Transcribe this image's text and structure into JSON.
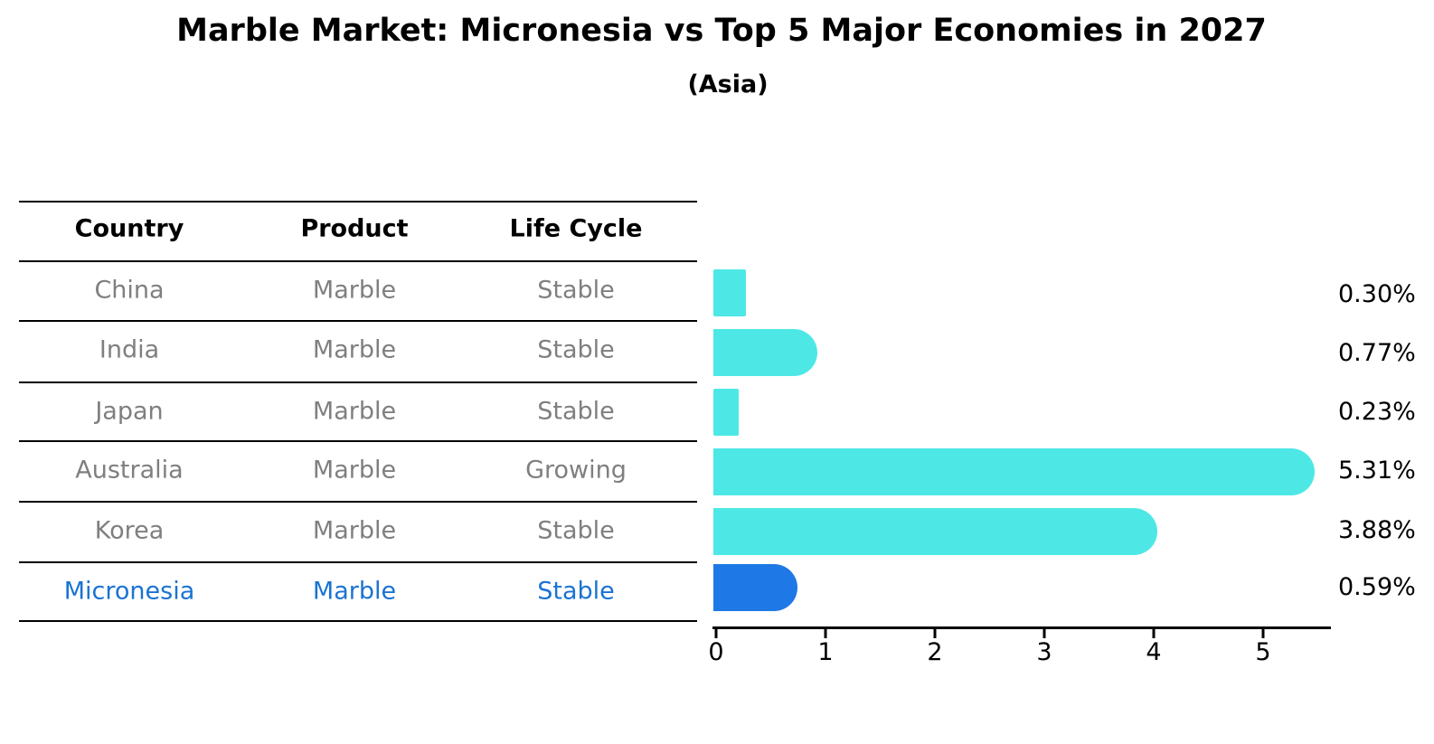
{
  "title": "Marble Market: Micronesia vs Top 5 Major Economies in 2027",
  "subtitle": "(Asia)",
  "table": {
    "headers": [
      "Country",
      "Product",
      "Life Cycle"
    ],
    "rows": [
      {
        "country": "China",
        "product": "Marble",
        "life_cycle": "Stable"
      },
      {
        "country": "India",
        "product": "Marble",
        "life_cycle": "Stable"
      },
      {
        "country": "Japan",
        "product": "Marble",
        "life_cycle": "Stable"
      },
      {
        "country": "Australia",
        "product": "Marble",
        "life_cycle": "Growing"
      },
      {
        "country": "Korea",
        "product": "Marble",
        "life_cycle": "Stable"
      },
      {
        "country": "Micronesia",
        "product": "Marble",
        "life_cycle": "Stable"
      }
    ],
    "highlight_row": "Micronesia"
  },
  "chart_data": {
    "type": "bar",
    "orientation": "horizontal",
    "title": "Marble Market: Micronesia vs Top 5 Major Economies in 2027",
    "subtitle": "(Asia)",
    "categories": [
      "China",
      "India",
      "Japan",
      "Australia",
      "Korea",
      "Micronesia"
    ],
    "values": [
      0.3,
      0.77,
      0.23,
      5.31,
      3.88,
      0.59
    ],
    "value_labels": [
      "0.30%",
      "0.77%",
      "0.23%",
      "5.31%",
      "3.88%",
      "0.59%"
    ],
    "unit": "%",
    "xticks": [
      0,
      1,
      2,
      3,
      4,
      5
    ],
    "xlim": [
      0,
      5.6
    ],
    "grid": false,
    "legend": false,
    "highlight_index": 5,
    "bar_color": "#4DE8E6",
    "highlight_bar_color": "#1E78E6"
  },
  "colors": {
    "text_primary": "#000000",
    "text_muted": "#7f7f7f",
    "highlight_text": "#1A73D2",
    "line": "#000000"
  }
}
